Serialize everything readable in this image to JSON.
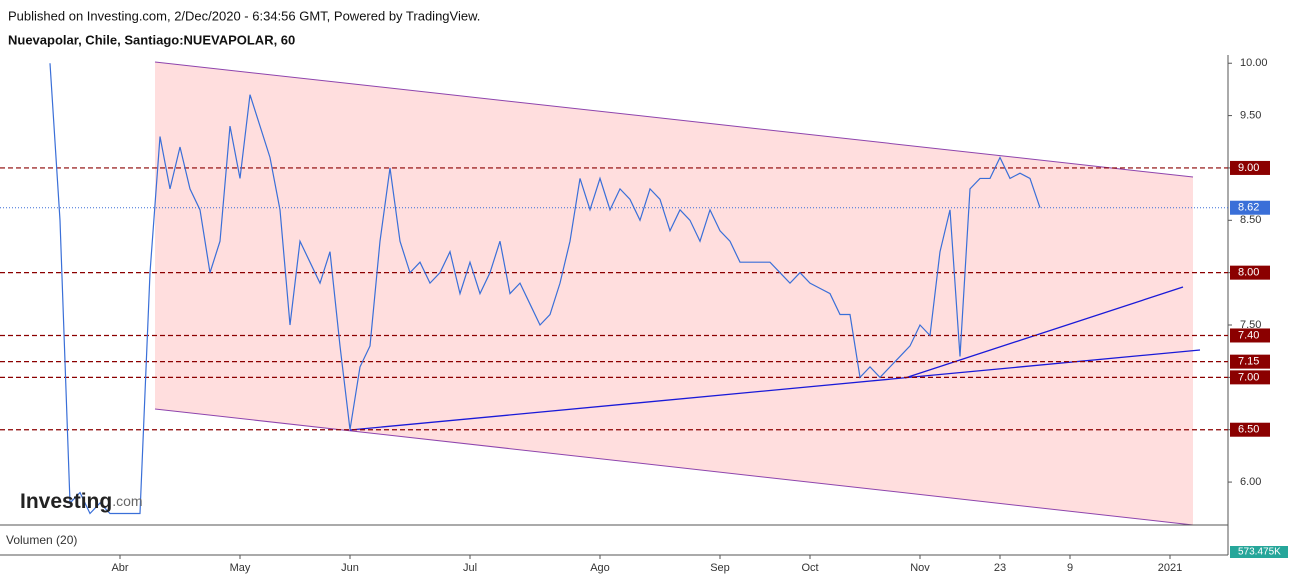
{
  "header": {
    "published": "Published on Investing.com, 2/Dec/2020 - 6:34:56 GMT, Powered by TradingView.",
    "symbol": "Nuevapolar, Chile, Santiago:NUEVAPOLAR, 60"
  },
  "logo": {
    "name": "Investing",
    "suffix": ".com"
  },
  "chart_data": {
    "type": "line",
    "categories": [
      null,
      null,
      null,
      null,
      null,
      null,
      null,
      "Abr",
      null,
      null,
      null,
      null,
      null,
      null,
      null,
      null,
      null,
      null,
      null,
      "May",
      null,
      null,
      null,
      null,
      null,
      null,
      null,
      null,
      null,
      null,
      "Jun",
      null,
      null,
      null,
      null,
      null,
      null,
      null,
      null,
      null,
      null,
      null,
      "Jul",
      null,
      null,
      null,
      null,
      null,
      null,
      null,
      null,
      null,
      null,
      null,
      null,
      "Ago",
      null,
      null,
      null,
      null,
      null,
      null,
      null,
      null,
      null,
      null,
      null,
      "Sep",
      null,
      null,
      null,
      null,
      null,
      null,
      null,
      null,
      "Oct",
      null,
      null,
      null,
      null,
      null,
      null,
      null,
      null,
      null,
      null,
      "Nov",
      null,
      null,
      null,
      null,
      null,
      null,
      null,
      "23",
      null,
      null,
      null,
      null,
      null,
      null,
      "9",
      null,
      null,
      null,
      null,
      null,
      null,
      null,
      null,
      null,
      "2021",
      null,
      null,
      null,
      null,
      null
    ],
    "series": [
      {
        "name": "NUEVAPOLAR",
        "color": "#3a6fd8",
        "values": [
          10.0,
          8.5,
          5.8,
          5.9,
          5.7,
          5.8,
          5.7,
          5.7,
          5.7,
          5.7,
          8.0,
          9.3,
          8.8,
          9.2,
          8.8,
          8.6,
          8.0,
          8.3,
          9.4,
          8.9,
          9.7,
          9.4,
          9.1,
          8.6,
          7.5,
          8.3,
          8.1,
          7.9,
          8.2,
          7.3,
          6.5,
          7.1,
          7.3,
          8.3,
          9.0,
          8.3,
          8.0,
          8.1,
          7.9,
          8.0,
          8.2,
          7.8,
          8.1,
          7.8,
          8.0,
          8.3,
          7.8,
          7.9,
          7.7,
          7.5,
          7.6,
          7.9,
          8.3,
          8.9,
          8.6,
          8.9,
          8.6,
          8.8,
          8.7,
          8.5,
          8.8,
          8.7,
          8.4,
          8.6,
          8.5,
          8.3,
          8.6,
          8.4,
          8.3,
          8.1,
          8.1,
          8.1,
          8.1,
          8.0,
          7.9,
          8.0,
          7.9,
          7.85,
          7.8,
          7.6,
          7.6,
          7.0,
          7.1,
          7.0,
          7.1,
          7.2,
          7.3,
          7.5,
          7.4,
          8.2,
          8.6,
          7.2,
          8.8,
          8.9,
          8.9,
          9.1,
          8.9,
          8.95,
          8.9,
          8.62,
          null,
          null,
          null,
          null,
          null,
          null,
          null,
          null,
          null,
          null,
          null,
          null,
          null,
          null,
          null,
          null,
          null,
          null
        ]
      }
    ],
    "ylim": [
      5.59,
      10.05
    ],
    "yticks": [
      {
        "value": 6,
        "label": "6.00"
      },
      {
        "value": 6.5,
        "label": "6.50"
      },
      {
        "value": 7,
        "label": "7.00"
      },
      {
        "value": 7.5,
        "label": "7.50"
      },
      {
        "value": 8,
        "label": "8.00"
      },
      {
        "value": 8.5,
        "label": "8.50"
      },
      {
        "value": 9,
        "label": "9.00"
      },
      {
        "value": 9.5,
        "label": "9.50"
      },
      {
        "value": 10,
        "label": "10.00"
      }
    ],
    "levels": [
      {
        "value": 9,
        "label": "9.00"
      },
      {
        "value": 8,
        "label": "8.00"
      },
      {
        "value": 7.4,
        "label": "7.40"
      },
      {
        "value": 7.15,
        "label": "7.15"
      },
      {
        "value": 7,
        "label": "7.00"
      },
      {
        "value": 6.5,
        "label": "6.50"
      }
    ],
    "level_color": "#8b0000",
    "last_price": {
      "value": 8.62,
      "label": "8.62"
    },
    "volume": {
      "title": "Volumen (20)",
      "last": {
        "value": 573475,
        "label": "573.475K"
      }
    }
  }
}
